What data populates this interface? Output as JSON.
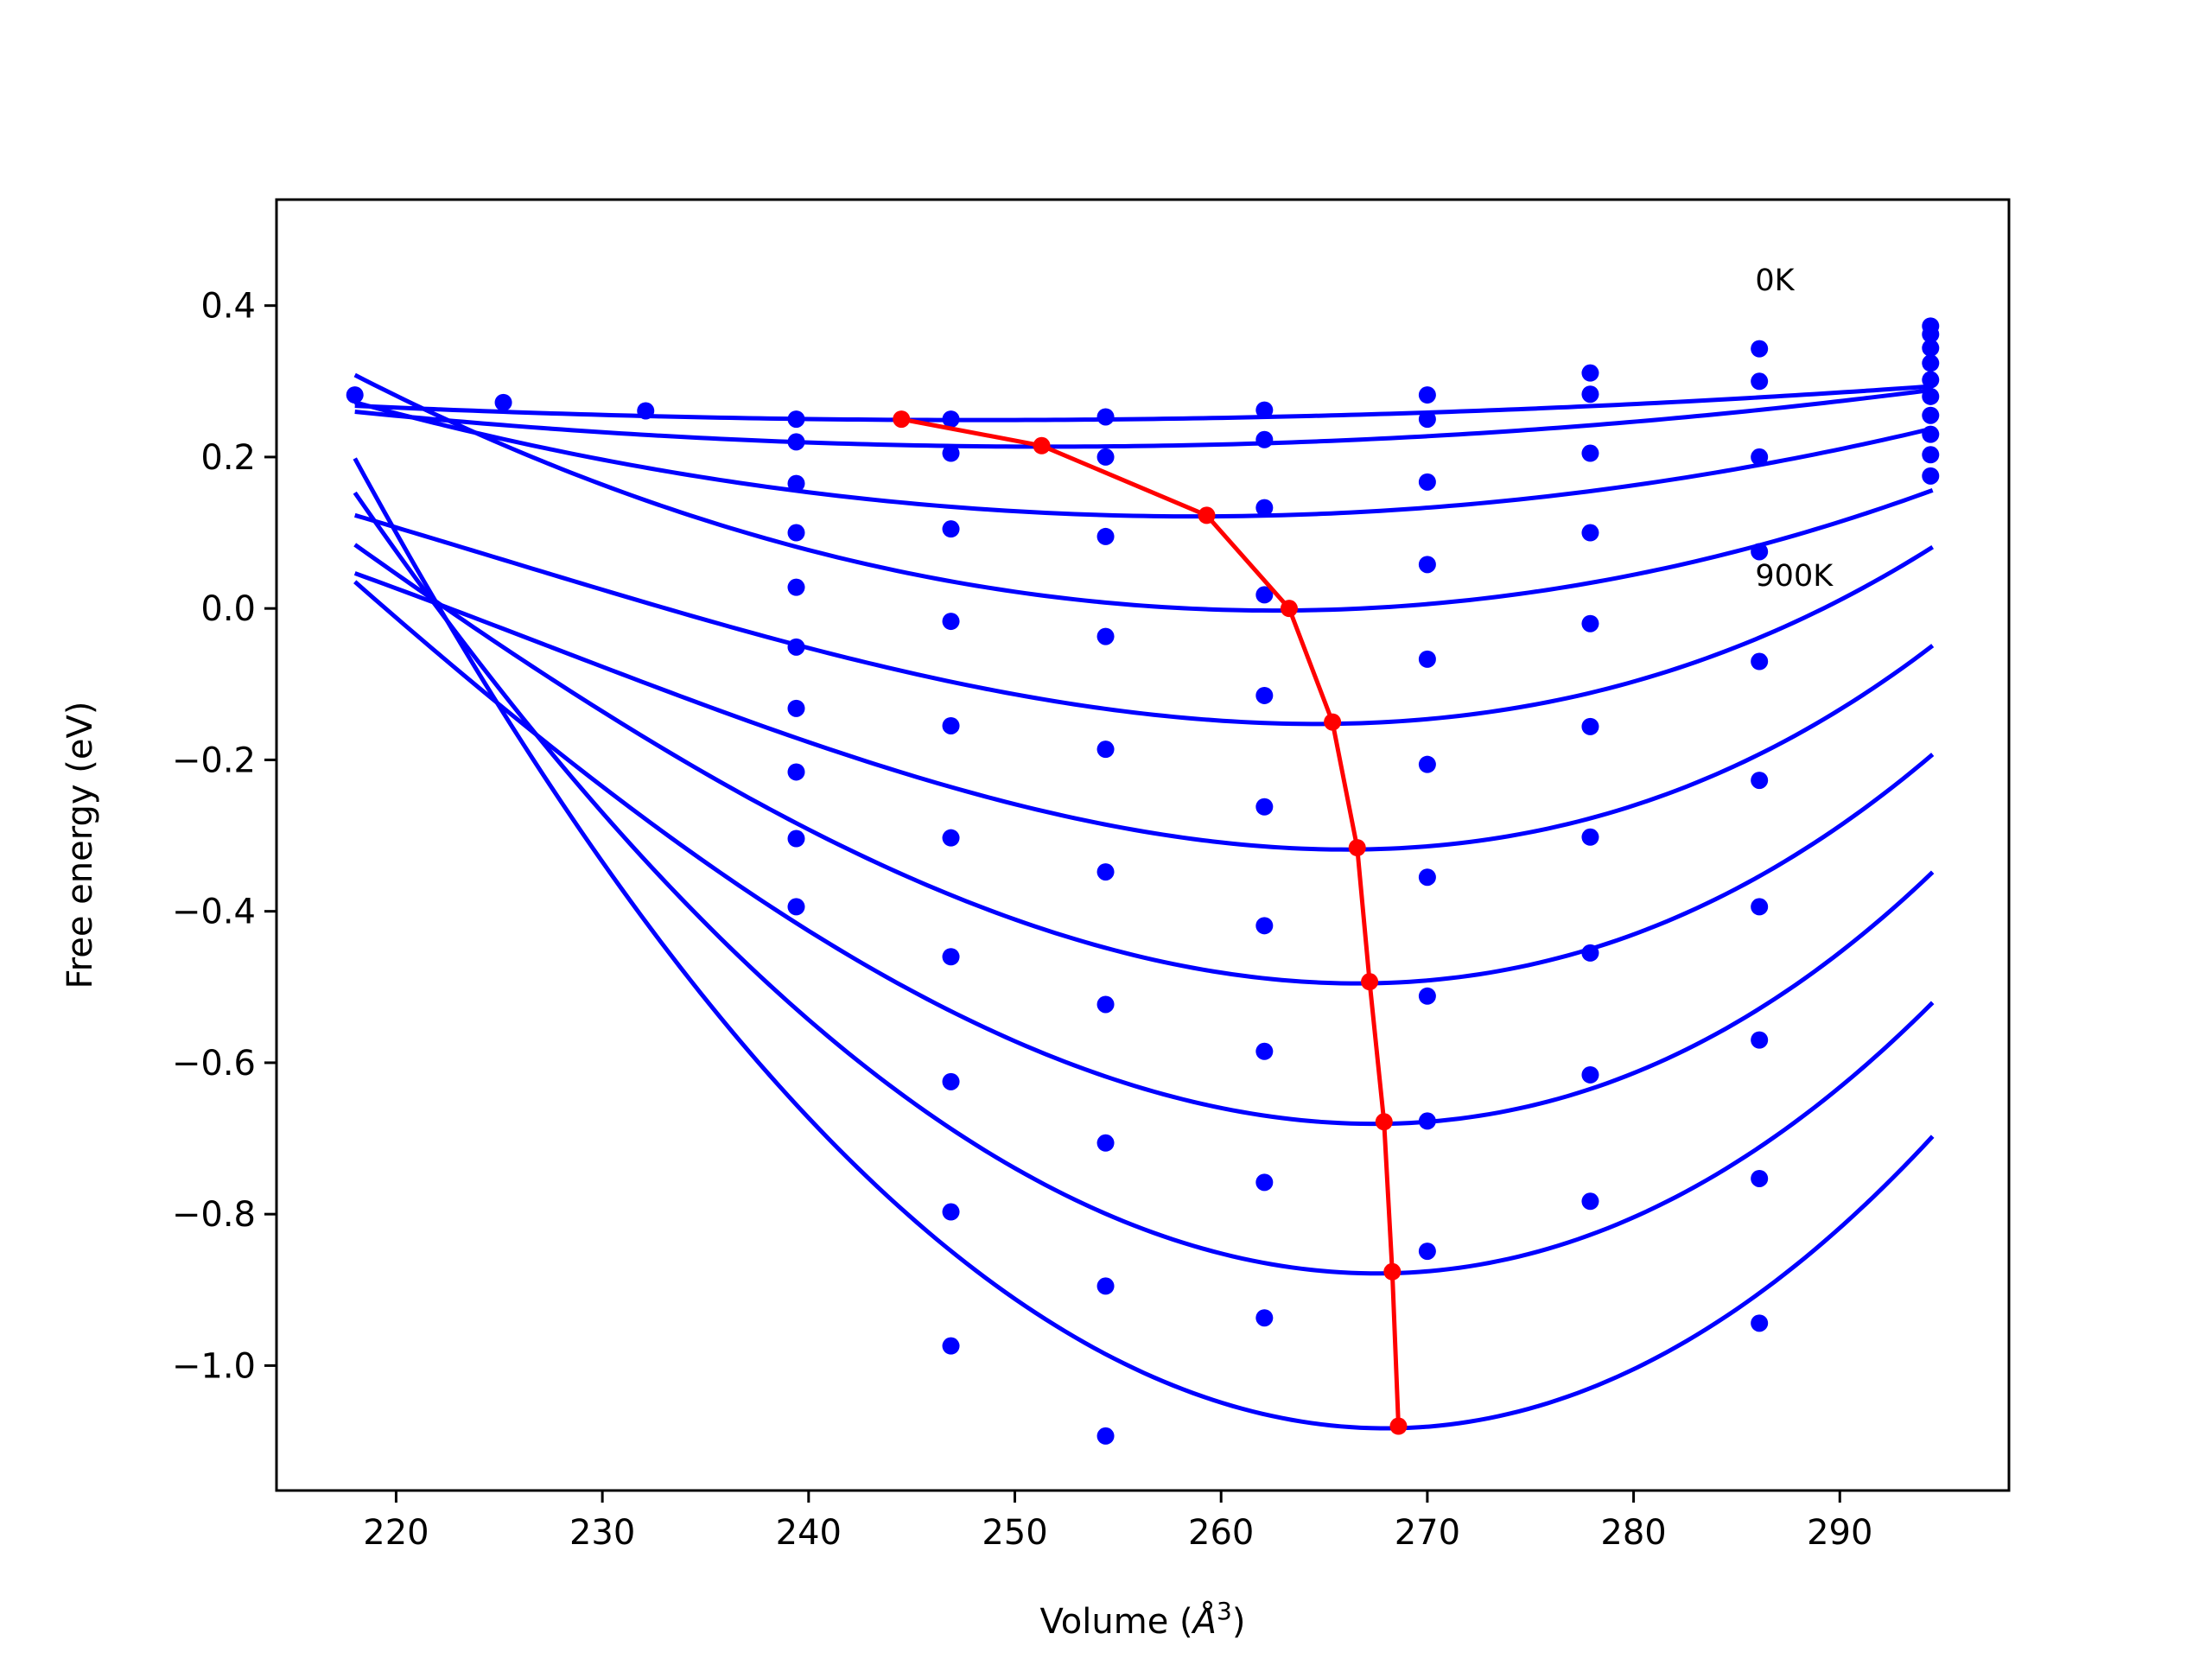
{
  "chart_data": {
    "type": "line",
    "title": "",
    "xlabel": "Volume (Å³)",
    "xlabel_parts": {
      "prefix": "Volume (",
      "symbol": "Å",
      "superscript": "3",
      "suffix": ")"
    },
    "ylabel": "Free energy (eV)",
    "xlim": [
      214.2,
      298.2
    ],
    "ylim": [
      -1.165,
      0.54
    ],
    "xticks": [
      220,
      230,
      240,
      250,
      260,
      270,
      280,
      290
    ],
    "yticks": [
      0.4,
      0.2,
      0.0,
      -0.2,
      -0.4,
      -0.6,
      -0.8,
      -1.0
    ],
    "ytick_labels": [
      "0.4",
      "0.2",
      "0.0",
      "−0.2",
      "−0.4",
      "−0.6",
      "−0.8",
      "−1.0"
    ],
    "grid": false,
    "legend": "none",
    "colors": {
      "fit": "#0000ff",
      "points": "#0000ff",
      "equilibrium": "#ff0000",
      "axes": "#000000"
    },
    "annotations": [
      {
        "text": "0K",
        "x": 285.9,
        "y": 0.42
      },
      {
        "text": "900K",
        "x": 285.9,
        "y": 0.03
      }
    ],
    "series": [
      {
        "name": "fit-0K",
        "v0": 248.0,
        "f0": 0.25,
        "fmin": 218.0,
        "fmax": 294.5,
        "coefs": [
          0.2488,
          -6e-06,
          2.08e-05,
          0.0
        ]
      },
      {
        "name": "fit-100K",
        "v0": 252.0,
        "f0": 0.215,
        "fmin": 218.0,
        "fmax": 294.5,
        "coefs": [
          0.2137,
          3.1e-05,
          4.08e-05,
          0.0
        ]
      },
      {
        "name": "fit-200K",
        "v0": 259.4,
        "f0": 0.125,
        "fmin": 218.0,
        "fmax": 294.5,
        "coefs": [
          0.1216,
          0.000121,
          9.08e-05,
          0.0
        ]
      },
      {
        "name": "fit-300K",
        "v0": 263.3,
        "f0": 0.0,
        "fmin": 218.0,
        "fmax": 294.5,
        "coefs": [
          -0.0027,
          0.000215,
          0.0001563,
          0.0
        ]
      },
      {
        "name": "fit-400K",
        "v0": 265.4,
        "f0": -0.15,
        "fmin": 218.0,
        "fmax": 294.5,
        "coefs": [
          -0.1524,
          0.000334,
          0.0002131,
          1.76e-06
        ]
      },
      {
        "name": "fit-500K",
        "v0": 266.8,
        "f0": -0.316,
        "fmin": 218.0,
        "fmax": 294.5,
        "coefs": [
          -0.3183,
          0.000385,
          0.0002733,
          2.3e-06
        ]
      },
      {
        "name": "fit-600K",
        "v0": 267.3,
        "f0": -0.493,
        "fmin": 218.0,
        "fmax": 294.5,
        "coefs": [
          -0.4951,
          0.000452,
          0.0003407,
          1.89e-06
        ]
      },
      {
        "name": "fit-700K",
        "v0": 268.0,
        "f0": -0.678,
        "fmin": 218.0,
        "fmax": 294.5,
        "coefs": [
          -0.6806,
          0.000468,
          0.0004002,
          2.09e-06
        ]
      },
      {
        "name": "fit-800K",
        "v0": 268.2,
        "f0": -0.876,
        "fmin": 218.0,
        "fmax": 294.5,
        "coefs": [
          -0.8781,
          0.000593,
          0.0004691,
          9.6e-07
        ]
      },
      {
        "name": "fit-900K",
        "v0": 268.6,
        "f0": -1.08,
        "fmin": 218.0,
        "fmax": 294.5,
        "coefs": [
          -1.0827,
          0.000645,
          0.0005373,
          4.8e-07
        ]
      }
    ],
    "points": [
      {
        "x": 218.0,
        "y": 0.282
      },
      {
        "x": 225.2,
        "y": 0.272
      },
      {
        "x": 232.1,
        "y": 0.261
      },
      {
        "x": 239.4,
        "y": 0.25
      },
      {
        "x": 239.4,
        "y": 0.22
      },
      {
        "x": 239.4,
        "y": 0.165
      },
      {
        "x": 239.4,
        "y": 0.1
      },
      {
        "x": 239.4,
        "y": 0.028
      },
      {
        "x": 239.4,
        "y": -0.051
      },
      {
        "x": 239.4,
        "y": -0.132
      },
      {
        "x": 239.4,
        "y": -0.216
      },
      {
        "x": 239.4,
        "y": -0.304
      },
      {
        "x": 239.4,
        "y": -0.394
      },
      {
        "x": 246.9,
        "y": 0.25
      },
      {
        "x": 246.9,
        "y": 0.205
      },
      {
        "x": 246.9,
        "y": 0.105
      },
      {
        "x": 246.9,
        "y": -0.017
      },
      {
        "x": 246.9,
        "y": -0.155
      },
      {
        "x": 246.9,
        "y": -0.303
      },
      {
        "x": 246.9,
        "y": -0.46
      },
      {
        "x": 246.9,
        "y": -0.625
      },
      {
        "x": 246.9,
        "y": -0.797
      },
      {
        "x": 246.9,
        "y": -0.974
      },
      {
        "x": 254.4,
        "y": 0.253
      },
      {
        "x": 254.4,
        "y": 0.2
      },
      {
        "x": 254.4,
        "y": 0.095
      },
      {
        "x": 254.4,
        "y": -0.037
      },
      {
        "x": 254.4,
        "y": -0.186
      },
      {
        "x": 254.4,
        "y": -0.348
      },
      {
        "x": 254.4,
        "y": -0.523
      },
      {
        "x": 254.4,
        "y": -0.706
      },
      {
        "x": 254.4,
        "y": -0.895
      },
      {
        "x": 254.4,
        "y": -1.093
      },
      {
        "x": 262.1,
        "y": 0.262
      },
      {
        "x": 262.1,
        "y": 0.223
      },
      {
        "x": 262.1,
        "y": 0.133
      },
      {
        "x": 262.1,
        "y": 0.018
      },
      {
        "x": 262.1,
        "y": -0.115
      },
      {
        "x": 262.1,
        "y": -0.262
      },
      {
        "x": 262.1,
        "y": -0.419
      },
      {
        "x": 262.1,
        "y": -0.585
      },
      {
        "x": 262.1,
        "y": -0.758
      },
      {
        "x": 262.1,
        "y": -0.937
      },
      {
        "x": 270.0,
        "y": 0.282
      },
      {
        "x": 270.0,
        "y": 0.25
      },
      {
        "x": 270.0,
        "y": 0.167
      },
      {
        "x": 270.0,
        "y": 0.058
      },
      {
        "x": 270.0,
        "y": -0.067
      },
      {
        "x": 270.0,
        "y": -0.206
      },
      {
        "x": 270.0,
        "y": -0.355
      },
      {
        "x": 270.0,
        "y": -0.512
      },
      {
        "x": 270.0,
        "y": -0.677
      },
      {
        "x": 270.0,
        "y": -0.849
      },
      {
        "x": 277.9,
        "y": 0.311
      },
      {
        "x": 277.9,
        "y": 0.283
      },
      {
        "x": 277.9,
        "y": 0.205
      },
      {
        "x": 277.9,
        "y": 0.1
      },
      {
        "x": 277.9,
        "y": -0.02
      },
      {
        "x": 277.9,
        "y": -0.156
      },
      {
        "x": 277.9,
        "y": -0.302
      },
      {
        "x": 277.9,
        "y": -0.455
      },
      {
        "x": 277.9,
        "y": -0.616
      },
      {
        "x": 277.9,
        "y": -0.783
      },
      {
        "x": 286.1,
        "y": 0.343
      },
      {
        "x": 286.1,
        "y": 0.3
      },
      {
        "x": 286.1,
        "y": 0.2
      },
      {
        "x": 286.1,
        "y": 0.075
      },
      {
        "x": 286.1,
        "y": -0.07
      },
      {
        "x": 286.1,
        "y": -0.227
      },
      {
        "x": 286.1,
        "y": -0.394
      },
      {
        "x": 286.1,
        "y": -0.57
      },
      {
        "x": 286.1,
        "y": -0.753
      },
      {
        "x": 286.1,
        "y": -0.944
      },
      {
        "x": 294.4,
        "y": 0.373
      },
      {
        "x": 294.4,
        "y": 0.362
      },
      {
        "x": 294.4,
        "y": 0.344
      },
      {
        "x": 294.4,
        "y": 0.324
      },
      {
        "x": 294.4,
        "y": 0.302
      },
      {
        "x": 294.4,
        "y": 0.28
      },
      {
        "x": 294.4,
        "y": 0.255
      },
      {
        "x": 294.4,
        "y": 0.23
      },
      {
        "x": 294.4,
        "y": 0.203
      },
      {
        "x": 294.4,
        "y": 0.175
      }
    ],
    "equilibrium": [
      {
        "x": 244.5,
        "y": 0.25
      },
      {
        "x": 251.3,
        "y": 0.215
      },
      {
        "x": 259.3,
        "y": 0.123
      },
      {
        "x": 263.3,
        "y": 0.0
      },
      {
        "x": 265.4,
        "y": -0.15
      },
      {
        "x": 266.6,
        "y": -0.316
      },
      {
        "x": 267.2,
        "y": -0.493
      },
      {
        "x": 267.9,
        "y": -0.678
      },
      {
        "x": 268.3,
        "y": -0.876
      },
      {
        "x": 268.6,
        "y": -1.08
      }
    ]
  }
}
